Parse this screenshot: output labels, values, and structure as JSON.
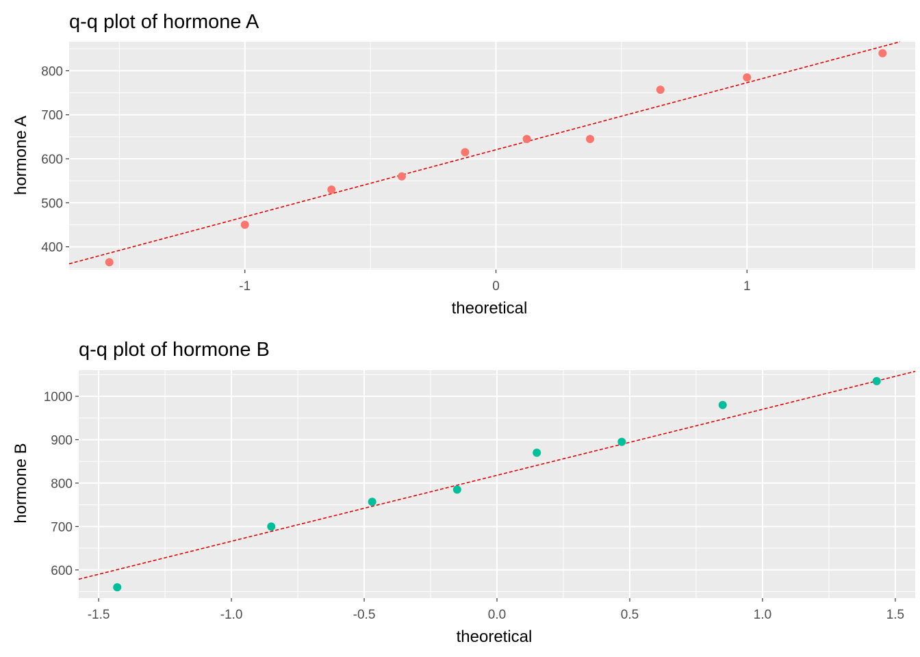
{
  "chart_data": [
    {
      "type": "scatter",
      "title": "q-q plot of hormone A",
      "xlabel": "theoretical",
      "ylabel": "hormone A",
      "xlim": [
        -1.7,
        1.67
      ],
      "ylim": [
        348,
        866
      ],
      "x_ticks": [
        -1,
        0,
        1
      ],
      "x_tick_labels": [
        "-1",
        "0",
        "1"
      ],
      "y_ticks": [
        400,
        500,
        600,
        700,
        800
      ],
      "y_tick_labels": [
        "400",
        "500",
        "600",
        "700",
        "800"
      ],
      "grid": true,
      "legend": "none",
      "point_color": "#f8766d",
      "reference_line": {
        "color": "#e00000",
        "style": "dashed",
        "intercept": 620.5,
        "slope": 152.5
      },
      "series": [
        {
          "x": [
            -1.54,
            -1.0,
            -0.655,
            -0.375,
            -0.123,
            0.123,
            0.375,
            0.655,
            1.0,
            1.54
          ],
          "y": [
            365,
            450,
            530,
            560,
            615,
            645,
            645,
            757,
            785,
            840
          ]
        }
      ]
    },
    {
      "type": "scatter",
      "title": "q-q plot of hormone B",
      "xlabel": "theoretical",
      "ylabel": "hormone B",
      "xlim": [
        -1.575,
        1.575
      ],
      "ylim": [
        535,
        1060
      ],
      "x_ticks": [
        -1.5,
        -1.0,
        -0.5,
        0.0,
        0.5,
        1.0,
        1.5
      ],
      "x_tick_labels": [
        "-1.5",
        "-1.0",
        "-0.5",
        "0.0",
        "0.5",
        "1.0",
        "1.5"
      ],
      "y_ticks": [
        600,
        700,
        800,
        900,
        1000
      ],
      "y_tick_labels": [
        "600",
        "700",
        "800",
        "900",
        "1000"
      ],
      "grid": true,
      "legend": "none",
      "point_color": "#00bf9a",
      "reference_line": {
        "color": "#e00000",
        "style": "dashed",
        "intercept": 818,
        "slope": 152
      },
      "series": [
        {
          "x": [
            -1.43,
            -0.85,
            -0.47,
            -0.15,
            0.15,
            0.47,
            0.85,
            1.43
          ],
          "y": [
            560,
            700,
            757,
            785,
            870,
            895,
            980,
            1035
          ]
        }
      ]
    }
  ]
}
